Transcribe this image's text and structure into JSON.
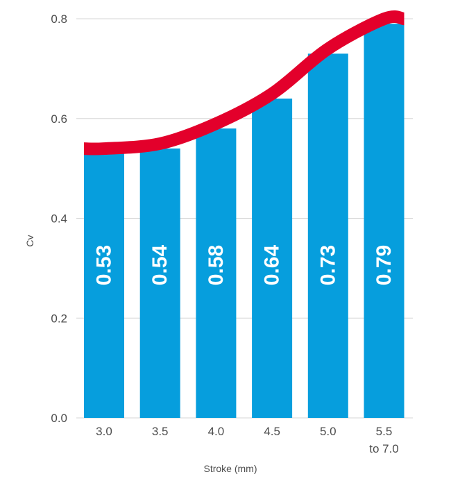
{
  "chart_data": {
    "type": "bar",
    "title": "",
    "xlabel": "Stroke (mm)",
    "ylabel": "Cv",
    "categories": [
      [
        "3.0"
      ],
      [
        "3.5"
      ],
      [
        "4.0"
      ],
      [
        "4.5"
      ],
      [
        "5.0"
      ],
      [
        "5.5",
        "to 7.0"
      ]
    ],
    "values": [
      0.53,
      0.54,
      0.58,
      0.64,
      0.73,
      0.79
    ],
    "data_labels": [
      "0.53",
      "0.54",
      "0.58",
      "0.64",
      "0.73",
      "0.79"
    ],
    "trend_curve": true,
    "ylim": [
      0,
      0.8
    ],
    "yticks": [
      0.0,
      0.2,
      0.4,
      0.6,
      0.8
    ],
    "ytick_labels": [
      "0.0",
      "0.2",
      "0.4",
      "0.6",
      "0.8"
    ],
    "grid": true,
    "colors": {
      "bar": "#069edd",
      "curve": "#e3002b",
      "grid": "#d6d6d6",
      "text": "#4d4d4d"
    }
  }
}
